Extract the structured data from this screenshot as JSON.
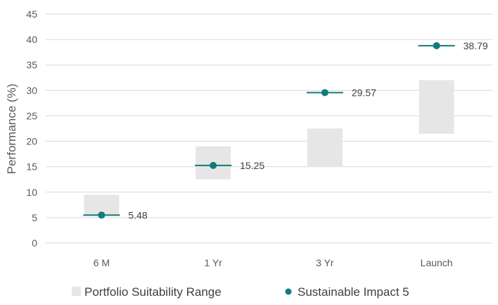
{
  "chart_data": {
    "type": "range-and-dot",
    "title": "",
    "xlabel": "",
    "ylabel": "Performance (%)",
    "ylim": [
      0,
      45
    ],
    "yticks": [
      0,
      5,
      10,
      15,
      20,
      25,
      30,
      35,
      40,
      45
    ],
    "categories": [
      "6 M",
      "1 Yr",
      "3 Yr",
      "Launch"
    ],
    "grid": true,
    "legend_position": "bottom",
    "series": [
      {
        "name": "Portfolio Suitability Range",
        "kind": "range",
        "color": "#e6e6e6",
        "ranges": [
          [
            5.5,
            9.5
          ],
          [
            12.5,
            19.0
          ],
          [
            15.0,
            22.5
          ],
          [
            21.5,
            32.0
          ]
        ]
      },
      {
        "name": "Sustainable Impact 5",
        "kind": "point",
        "color": "#0e7c7b",
        "values": [
          5.48,
          15.25,
          29.57,
          38.79
        ],
        "labels": [
          "5.48",
          "15.25",
          "29.57",
          "38.79"
        ]
      }
    ]
  }
}
